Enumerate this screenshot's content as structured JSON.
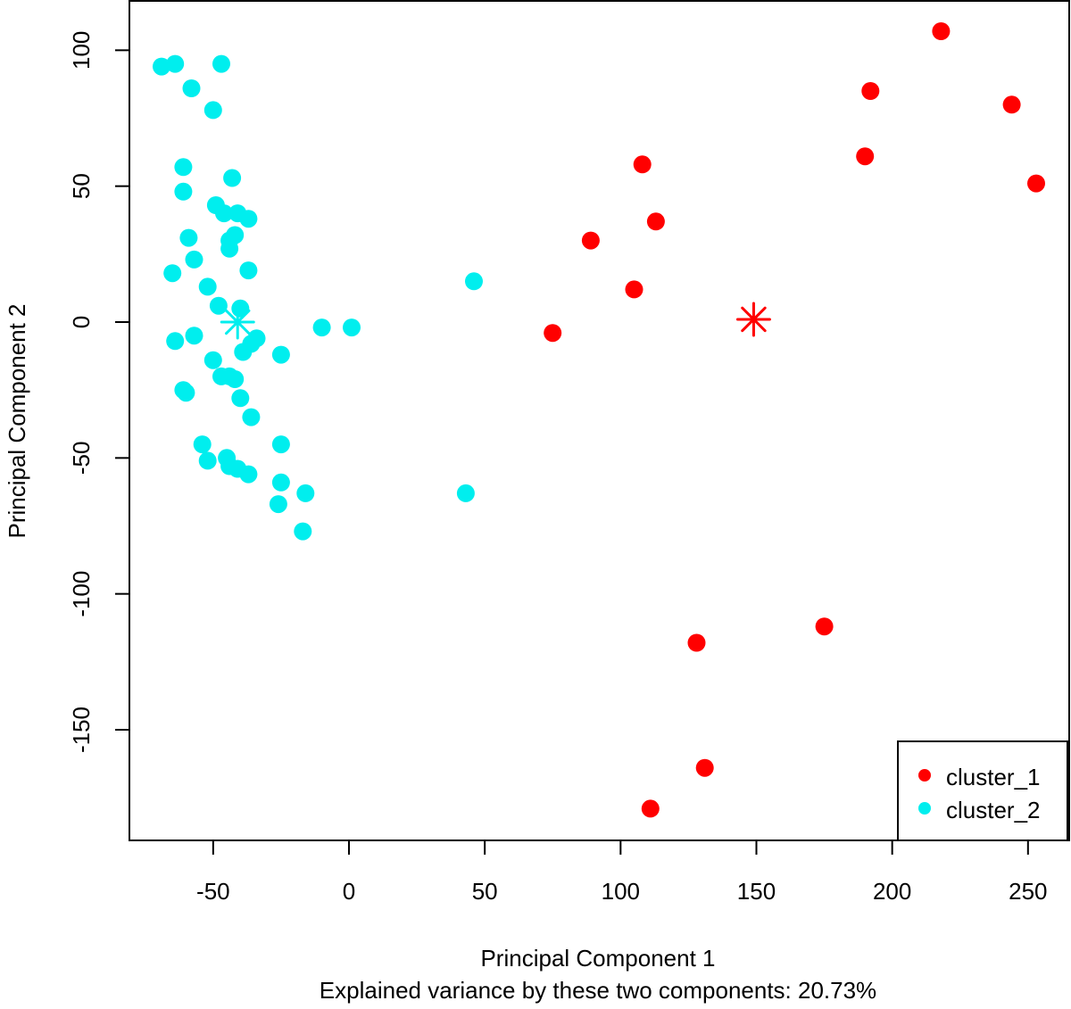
{
  "chart_data": {
    "type": "scatter",
    "title": "",
    "xlabel": "Principal Component 1",
    "ylabel": "Principal Component 2",
    "subtitle": "Explained variance by these two components: 20.73%",
    "xlim": [
      -80,
      265
    ],
    "ylim": [
      -190,
      118
    ],
    "xticks": [
      -50,
      0,
      50,
      100,
      150,
      200,
      250
    ],
    "yticks": [
      -150,
      -100,
      -50,
      0,
      50,
      100
    ],
    "legend_position": "bottom-right",
    "series": [
      {
        "name": "cluster_1",
        "color": "#ff0000",
        "centroid": [
          149,
          1
        ],
        "points": [
          [
            218,
            107
          ],
          [
            192,
            85
          ],
          [
            244,
            80
          ],
          [
            190,
            61
          ],
          [
            253,
            51
          ],
          [
            108,
            58
          ],
          [
            113,
            37
          ],
          [
            89,
            30
          ],
          [
            105,
            12
          ],
          [
            75,
            -4
          ],
          [
            175,
            -112
          ],
          [
            128,
            -118
          ],
          [
            131,
            -164
          ],
          [
            111,
            -179
          ]
        ]
      },
      {
        "name": "cluster_2",
        "color": "#00eeee",
        "centroid": [
          -41,
          0
        ],
        "points": [
          [
            -69,
            94
          ],
          [
            -64,
            95
          ],
          [
            -47,
            95
          ],
          [
            -58,
            86
          ],
          [
            -50,
            78
          ],
          [
            -61,
            57
          ],
          [
            -61,
            48
          ],
          [
            -43,
            53
          ],
          [
            -49,
            43
          ],
          [
            -46,
            40
          ],
          [
            -41,
            40
          ],
          [
            -37,
            38
          ],
          [
            -42,
            32
          ],
          [
            -44,
            30
          ],
          [
            -44,
            27
          ],
          [
            -59,
            31
          ],
          [
            -57,
            23
          ],
          [
            -65,
            18
          ],
          [
            -37,
            19
          ],
          [
            -52,
            13
          ],
          [
            -48,
            6
          ],
          [
            -40,
            5
          ],
          [
            -10,
            -2
          ],
          [
            1,
            -2
          ],
          [
            46,
            15
          ],
          [
            -64,
            -7
          ],
          [
            -57,
            -5
          ],
          [
            -34,
            -6
          ],
          [
            -36,
            -8
          ],
          [
            -39,
            -11
          ],
          [
            -25,
            -12
          ],
          [
            -50,
            -14
          ],
          [
            -47,
            -20
          ],
          [
            -44,
            -20
          ],
          [
            -42,
            -21
          ],
          [
            -61,
            -25
          ],
          [
            -60,
            -26
          ],
          [
            -40,
            -28
          ],
          [
            -36,
            -35
          ],
          [
            -54,
            -45
          ],
          [
            -25,
            -45
          ],
          [
            -45,
            -50
          ],
          [
            -52,
            -51
          ],
          [
            -44,
            -53
          ],
          [
            -41,
            -54
          ],
          [
            -37,
            -56
          ],
          [
            -25,
            -59
          ],
          [
            -16,
            -63
          ],
          [
            43,
            -63
          ],
          [
            -26,
            -67
          ],
          [
            -17,
            -77
          ]
        ]
      }
    ]
  }
}
